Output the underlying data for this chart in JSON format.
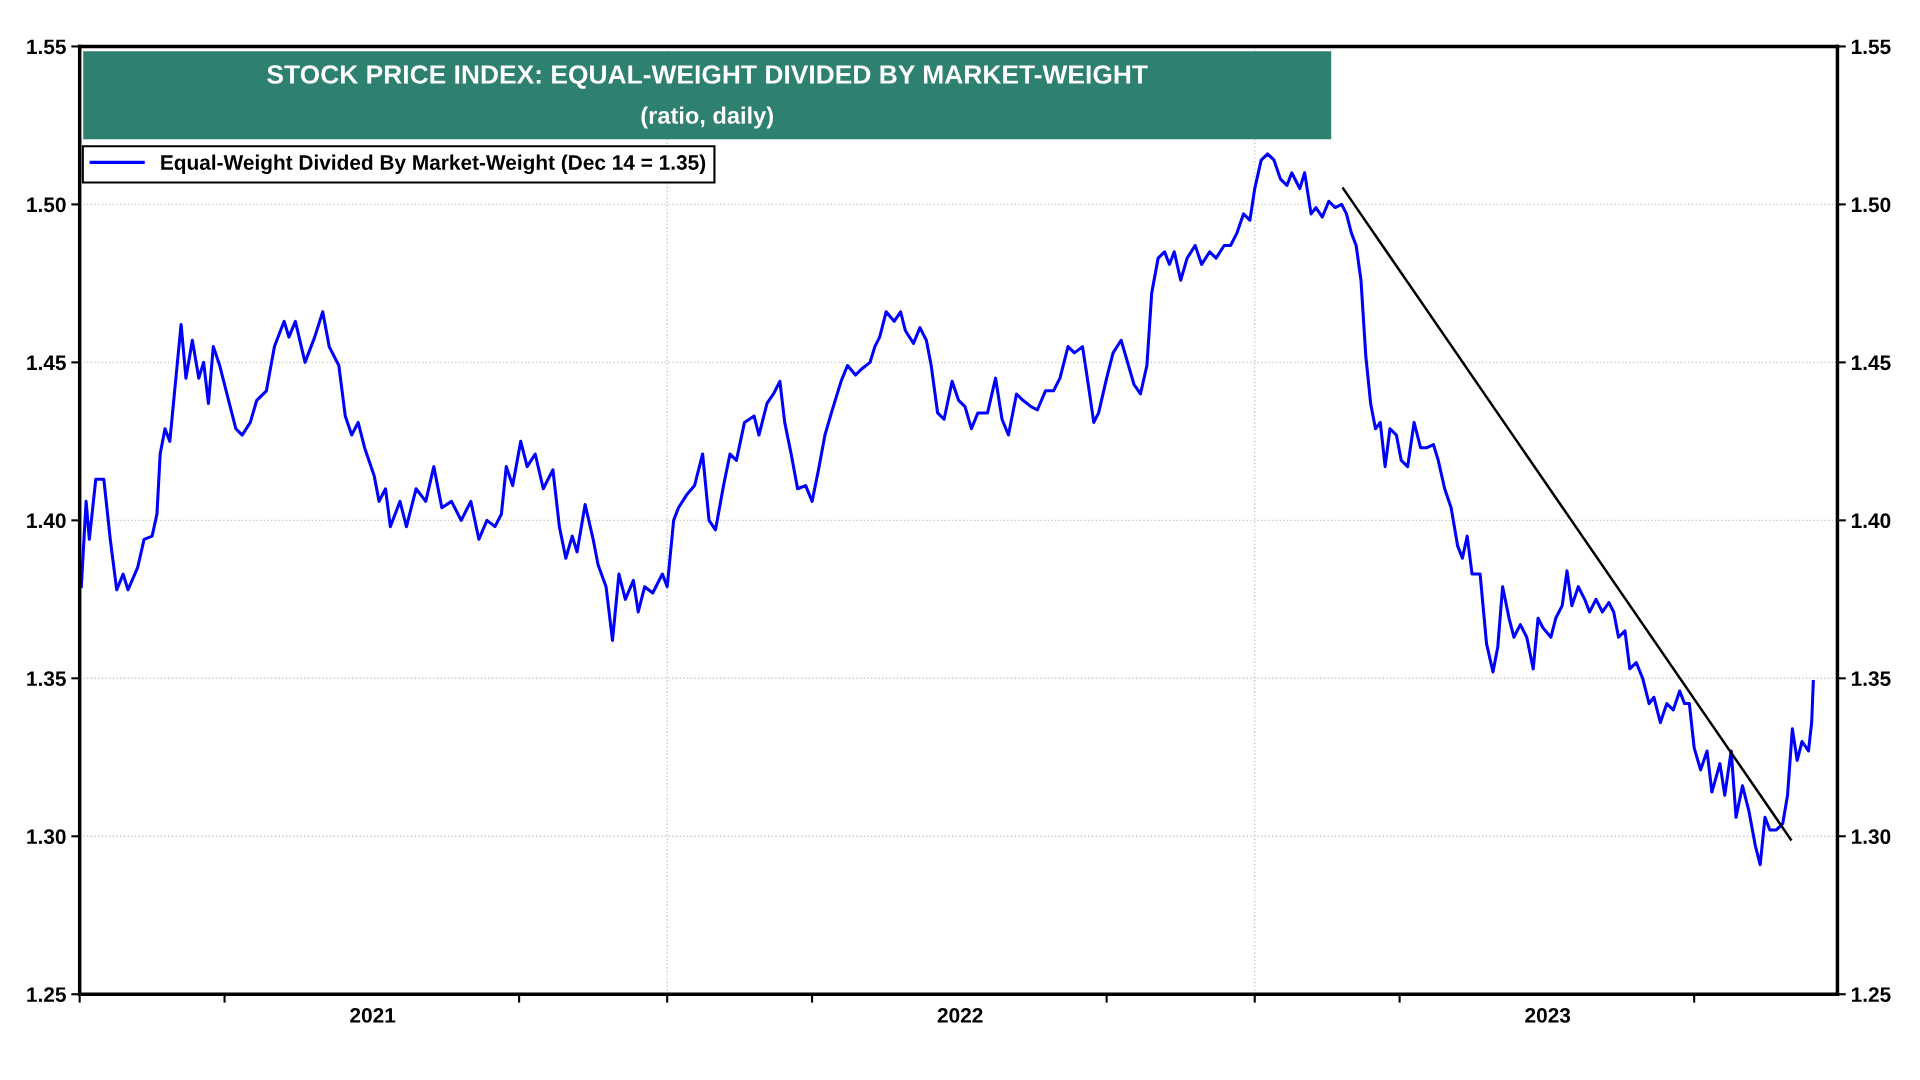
{
  "chart_data": {
    "type": "line",
    "title": "STOCK PRICE INDEX: EQUAL-WEIGHT DIVIDED BY MARKET-WEIGHT",
    "subtitle": "(ratio, daily)",
    "xlim": [
      "2021-01-01",
      "2023-12-29"
    ],
    "xticks": [
      {
        "value": "2021-01-01",
        "label": null
      },
      {
        "value": "2021-04-01",
        "label": null
      },
      {
        "value": "2021-07-02",
        "label": "2021"
      },
      {
        "value": "2021-10-01",
        "label": null
      },
      {
        "value": "2022-01-01",
        "label": null
      },
      {
        "value": "2022-04-01",
        "label": null
      },
      {
        "value": "2022-07-02",
        "label": "2022"
      },
      {
        "value": "2022-10-01",
        "label": null
      },
      {
        "value": "2023-01-01",
        "label": null
      },
      {
        "value": "2023-04-01",
        "label": null
      },
      {
        "value": "2023-07-02",
        "label": "2023"
      },
      {
        "value": "2023-10-01",
        "label": null
      }
    ],
    "ylim": [
      1.25,
      1.55
    ],
    "yticks": [
      1.25,
      {
        "value": 1.3,
        "label": "1.30"
      },
      1.35,
      {
        "value": 1.4,
        "label": "1.40"
      },
      1.45,
      {
        "value": 1.5,
        "label": "1.50"
      },
      1.55
    ],
    "y2lim": [
      1.25,
      1.55
    ],
    "y2ticks": [
      1.25,
      {
        "value": 1.3,
        "label": "1.30"
      },
      1.35,
      {
        "value": 1.4,
        "label": "1.40"
      },
      1.45,
      {
        "value": 1.5,
        "label": "1.50"
      },
      1.55
    ],
    "grid": "y",
    "legend": "top left",
    "marker": "none",
    "line_style": "solid",
    "ref_lines": [
      {
        "axis": "x",
        "value": "2022-01-01",
        "color": "#c8c8c8",
        "line_style": "dotted"
      },
      {
        "axis": "x",
        "value": "2023-01-01",
        "color": "#c8c8c8",
        "line_style": "dotted"
      }
    ],
    "series": [
      {
        "name": "Equal-Weight Divided By Market-Weight (Dec 14 = 1.35)",
        "color": "#0000ff",
        "x": [
          "2021-01-02",
          "2021-01-05",
          "2021-01-07",
          "2021-01-11",
          "2021-01-16",
          "2021-01-20",
          "2021-01-24",
          "2021-01-28",
          "2021-01-31",
          "2021-02-06",
          "2021-02-10",
          "2021-02-15",
          "2021-02-18",
          "2021-02-20",
          "2021-02-23",
          "2021-02-26",
          "2021-03-01",
          "2021-03-05",
          "2021-03-08",
          "2021-03-12",
          "2021-03-16",
          "2021-03-19",
          "2021-03-22",
          "2021-03-25",
          "2021-03-29",
          "2021-04-02",
          "2021-04-08",
          "2021-04-12",
          "2021-04-17",
          "2021-04-21",
          "2021-04-27",
          "2021-05-02",
          "2021-05-08",
          "2021-05-11",
          "2021-05-15",
          "2021-05-21",
          "2021-05-27",
          "2021-06-01",
          "2021-06-05",
          "2021-06-11",
          "2021-06-15",
          "2021-06-19",
          "2021-06-23",
          "2021-06-27",
          "2021-07-03",
          "2021-07-06",
          "2021-07-10",
          "2021-07-13",
          "2021-07-19",
          "2021-07-23",
          "2021-07-29",
          "2021-08-04",
          "2021-08-09",
          "2021-08-14",
          "2021-08-20",
          "2021-08-26",
          "2021-09-01",
          "2021-09-06",
          "2021-09-11",
          "2021-09-16",
          "2021-09-20",
          "2021-09-23",
          "2021-09-27",
          "2021-10-02",
          "2021-10-06",
          "2021-10-11",
          "2021-10-16",
          "2021-10-22",
          "2021-10-26",
          "2021-10-30",
          "2021-11-03",
          "2021-11-06",
          "2021-11-11",
          "2021-11-16",
          "2021-11-19",
          "2021-11-24",
          "2021-11-28",
          "2021-12-02",
          "2021-12-06",
          "2021-12-11",
          "2021-12-14",
          "2021-12-18",
          "2021-12-23",
          "2021-12-29",
          "2022-01-01",
          "2022-01-05",
          "2022-01-08",
          "2022-01-13",
          "2022-01-18",
          "2022-01-23",
          "2022-01-27",
          "2022-01-31",
          "2022-02-05",
          "2022-02-09",
          "2022-02-13",
          "2022-02-18",
          "2022-02-24",
          "2022-02-27",
          "2022-03-04",
          "2022-03-08",
          "2022-03-12",
          "2022-03-15",
          "2022-03-19",
          "2022-03-23",
          "2022-03-28",
          "2022-04-01",
          "2022-04-05",
          "2022-04-09",
          "2022-04-13",
          "2022-04-19",
          "2022-04-23",
          "2022-04-28",
          "2022-05-02",
          "2022-05-07",
          "2022-05-10",
          "2022-05-13",
          "2022-05-17",
          "2022-05-22",
          "2022-05-26",
          "2022-05-29",
          "2022-06-03",
          "2022-06-07",
          "2022-06-11",
          "2022-06-14",
          "2022-06-18",
          "2022-06-22",
          "2022-06-27",
          "2022-07-01",
          "2022-07-05",
          "2022-07-09",
          "2022-07-13",
          "2022-07-19",
          "2022-07-24",
          "2022-07-28",
          "2022-08-01",
          "2022-08-06",
          "2022-08-10",
          "2022-08-15",
          "2022-08-19",
          "2022-08-24",
          "2022-08-29",
          "2022-09-02",
          "2022-09-07",
          "2022-09-11",
          "2022-09-16",
          "2022-09-19",
          "2022-09-23",
          "2022-09-26",
          "2022-10-01",
          "2022-10-05",
          "2022-10-10",
          "2022-10-14",
          "2022-10-18",
          "2022-10-22",
          "2022-10-26",
          "2022-10-29",
          "2022-11-02",
          "2022-11-06",
          "2022-11-09",
          "2022-11-12",
          "2022-11-16",
          "2022-11-20",
          "2022-11-25",
          "2022-11-29",
          "2022-12-04",
          "2022-12-08",
          "2022-12-13",
          "2022-12-17",
          "2022-12-21",
          "2022-12-25",
          "2022-12-29",
          "2023-01-01",
          "2023-01-05",
          "2023-01-09",
          "2023-01-13",
          "2023-01-17",
          "2023-01-21",
          "2023-01-24",
          "2023-01-29",
          "2023-02-01",
          "2023-02-05",
          "2023-02-08",
          "2023-02-12",
          "2023-02-16",
          "2023-02-20",
          "2023-02-24",
          "2023-02-27",
          "2023-03-02",
          "2023-03-05",
          "2023-03-08",
          "2023-03-11",
          "2023-03-14",
          "2023-03-17",
          "2023-03-20",
          "2023-03-23",
          "2023-03-26",
          "2023-03-30",
          "2023-04-02",
          "2023-04-06",
          "2023-04-10",
          "2023-04-14",
          "2023-04-18",
          "2023-04-22",
          "2023-04-25",
          "2023-04-29",
          "2023-05-03",
          "2023-05-07",
          "2023-05-10",
          "2023-05-13",
          "2023-05-16",
          "2023-05-21",
          "2023-05-25",
          "2023-05-29",
          "2023-06-01",
          "2023-06-04",
          "2023-06-08",
          "2023-06-11",
          "2023-06-15",
          "2023-06-19",
          "2023-06-23",
          "2023-06-26",
          "2023-06-29",
          "2023-07-04",
          "2023-07-07",
          "2023-07-11",
          "2023-07-14",
          "2023-07-17",
          "2023-07-21",
          "2023-07-25",
          "2023-07-28",
          "2023-08-01",
          "2023-08-05",
          "2023-08-09",
          "2023-08-12",
          "2023-08-15",
          "2023-08-19",
          "2023-08-22",
          "2023-08-26",
          "2023-08-30",
          "2023-09-03",
          "2023-09-06",
          "2023-09-10",
          "2023-09-14",
          "2023-09-18",
          "2023-09-22",
          "2023-09-25",
          "2023-09-28",
          "2023-10-01",
          "2023-10-05",
          "2023-10-09",
          "2023-10-12",
          "2023-10-17",
          "2023-10-20",
          "2023-10-24",
          "2023-10-27",
          "2023-10-31",
          "2023-11-04",
          "2023-11-08",
          "2023-11-11",
          "2023-11-14",
          "2023-11-17",
          "2023-11-21",
          "2023-11-25",
          "2023-11-28",
          "2023-12-01",
          "2023-12-04",
          "2023-12-07",
          "2023-12-11",
          "2023-12-13",
          "2023-12-14"
        ],
        "values": [
          1.379,
          1.406,
          1.394,
          1.413,
          1.413,
          1.394,
          1.378,
          1.383,
          1.378,
          1.385,
          1.394,
          1.395,
          1.402,
          1.421,
          1.429,
          1.425,
          1.441,
          1.462,
          1.445,
          1.457,
          1.445,
          1.45,
          1.437,
          1.455,
          1.449,
          1.441,
          1.429,
          1.427,
          1.431,
          1.438,
          1.441,
          1.455,
          1.463,
          1.458,
          1.463,
          1.45,
          1.458,
          1.466,
          1.455,
          1.449,
          1.433,
          1.427,
          1.431,
          1.423,
          1.414,
          1.406,
          1.41,
          1.398,
          1.406,
          1.398,
          1.41,
          1.406,
          1.417,
          1.404,
          1.406,
          1.4,
          1.406,
          1.394,
          1.4,
          1.398,
          1.402,
          1.417,
          1.411,
          1.425,
          1.417,
          1.421,
          1.41,
          1.416,
          1.398,
          1.388,
          1.395,
          1.39,
          1.405,
          1.394,
          1.386,
          1.379,
          1.362,
          1.383,
          1.375,
          1.381,
          1.371,
          1.379,
          1.377,
          1.383,
          1.379,
          1.4,
          1.404,
          1.408,
          1.411,
          1.421,
          1.4,
          1.397,
          1.411,
          1.421,
          1.419,
          1.431,
          1.433,
          1.427,
          1.437,
          1.44,
          1.444,
          1.431,
          1.421,
          1.41,
          1.411,
          1.406,
          1.416,
          1.427,
          1.434,
          1.444,
          1.449,
          1.446,
          1.448,
          1.45,
          1.455,
          1.458,
          1.466,
          1.463,
          1.466,
          1.46,
          1.456,
          1.461,
          1.457,
          1.449,
          1.434,
          1.432,
          1.444,
          1.438,
          1.436,
          1.429,
          1.434,
          1.434,
          1.445,
          1.432,
          1.427,
          1.44,
          1.438,
          1.436,
          1.435,
          1.441,
          1.441,
          1.445,
          1.455,
          1.453,
          1.455,
          1.445,
          1.431,
          1.434,
          1.445,
          1.453,
          1.457,
          1.45,
          1.443,
          1.44,
          1.449,
          1.472,
          1.483,
          1.485,
          1.481,
          1.485,
          1.476,
          1.483,
          1.487,
          1.481,
          1.485,
          1.483,
          1.487,
          1.487,
          1.491,
          1.497,
          1.495,
          1.505,
          1.514,
          1.516,
          1.514,
          1.508,
          1.506,
          1.51,
          1.505,
          1.51,
          1.497,
          1.499,
          1.496,
          1.501,
          1.499,
          1.5,
          1.497,
          1.491,
          1.487,
          1.476,
          1.452,
          1.437,
          1.429,
          1.431,
          1.417,
          1.429,
          1.427,
          1.419,
          1.417,
          1.431,
          1.423,
          1.423,
          1.424,
          1.419,
          1.41,
          1.404,
          1.392,
          1.388,
          1.395,
          1.383,
          1.383,
          1.361,
          1.352,
          1.36,
          1.379,
          1.369,
          1.363,
          1.367,
          1.363,
          1.353,
          1.369,
          1.366,
          1.363,
          1.369,
          1.373,
          1.384,
          1.373,
          1.379,
          1.375,
          1.371,
          1.375,
          1.371,
          1.374,
          1.371,
          1.363,
          1.365,
          1.353,
          1.355,
          1.35,
          1.342,
          1.344,
          1.336,
          1.342,
          1.34,
          1.346,
          1.342,
          1.342,
          1.328,
          1.321,
          1.327,
          1.314,
          1.323,
          1.313,
          1.327,
          1.306,
          1.316,
          1.308,
          1.297,
          1.291,
          1.306,
          1.302,
          1.302,
          1.304,
          1.313,
          1.334,
          1.324,
          1.33,
          1.327,
          1.336,
          1.349
        ]
      },
      {
        "type": "line",
        "color": "#000000",
        "x": [
          "2023-02-25",
          "2023-11-30"
        ],
        "values": [
          1.505,
          1.299
        ]
      }
    ]
  }
}
